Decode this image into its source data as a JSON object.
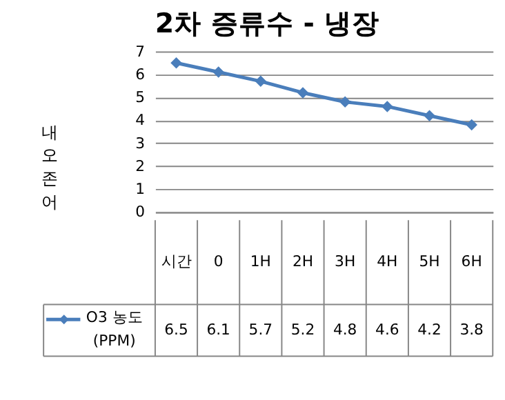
{
  "chart_data": {
    "type": "line",
    "title": "2차 증류수 - 냉장",
    "ylabel": "내오존어",
    "categories": [
      "시간",
      "0",
      "1H",
      "2H",
      "3H",
      "4H",
      "5H",
      "6H"
    ],
    "series": [
      {
        "name": "O3 농도\n(PPM)",
        "color": "#4a7ebb",
        "values": [
          6.5,
          6.1,
          5.7,
          5.2,
          4.8,
          4.6,
          4.2,
          3.8
        ]
      }
    ],
    "ylim": [
      0,
      7
    ],
    "yticks": [
      0,
      1,
      2,
      3,
      4,
      5,
      6,
      7
    ],
    "grid": "y",
    "marker": "diamond",
    "line_style": "solid",
    "legend": "bottom",
    "data_labels": true
  }
}
